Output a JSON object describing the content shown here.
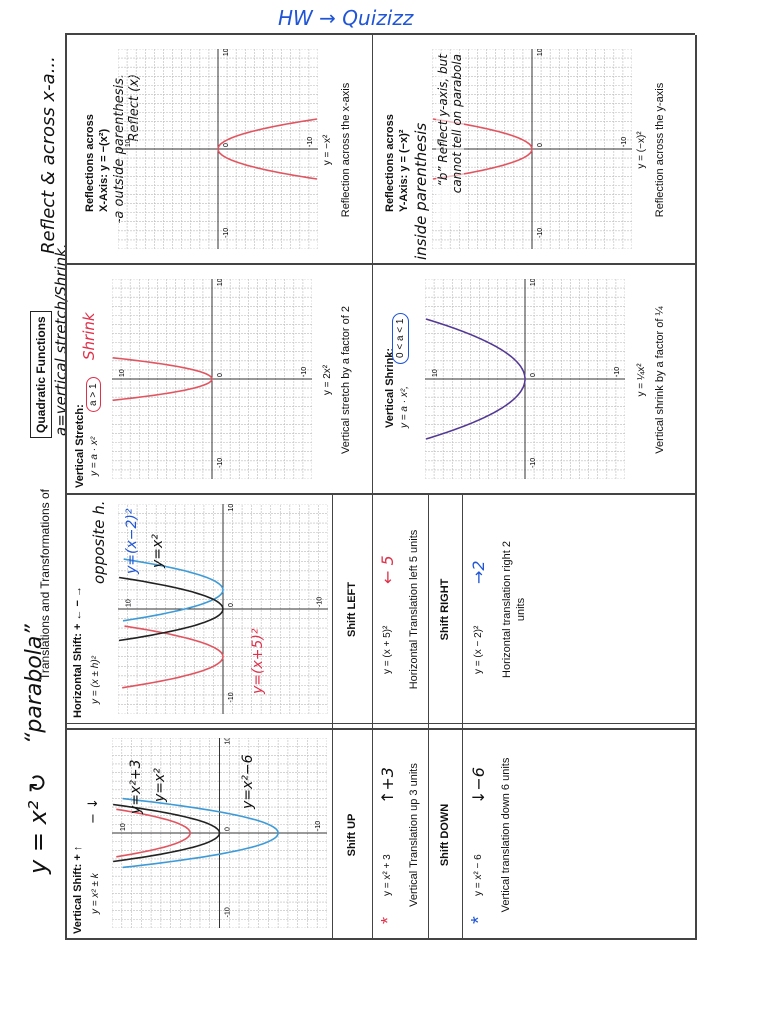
{
  "header": {
    "handwritten_equation": "y = x² ↻",
    "handwritten_label": "“parabola”",
    "title": "Translations and Transformations of",
    "title_boxed": "Quadratic Functions",
    "note_top": "HW → Quizizz",
    "note_stretch": "a=vertical stretch/Shrink.",
    "note_reflect": "Reflect & across x-a..."
  },
  "graph_ticks": [
    -10,
    0,
    10
  ],
  "vertical_shift": {
    "heading": "Vertical Shift: + ↑",
    "signs": "− ↓",
    "formula": "y = x² ± k",
    "graph_labels": [
      "y=x²+3",
      "y=x²",
      "y=x²−6"
    ],
    "up": {
      "header": "Shift UP",
      "equation": "y = x² + 3",
      "note": "↑+3",
      "description": "Vertical Translation up 3 units"
    },
    "down": {
      "header": "Shift DOWN",
      "equation": "y = x² − 6",
      "note": "↓−6",
      "description": "Vertical translation down 6 units"
    }
  },
  "horizontal_shift": {
    "heading": "Horizontal Shift: + ← − →",
    "formula": "y = (x ± h)²",
    "note": "opposite h.",
    "graph_labels": [
      "y=(x−2)²",
      "y=x²",
      "y=(x+5)²"
    ],
    "left": {
      "header": "Shift LEFT",
      "equation": "y = (x + 5)²",
      "note": "← 5",
      "description": "Horizontal Translation left 5 units"
    },
    "right": {
      "header": "Shift RIGHT",
      "equation": "y = (x − 2)²",
      "note": "→2",
      "description": "Horizontal translation right 2 units"
    }
  },
  "vertical_stretch": {
    "heading": "Vertical Stretch:",
    "formula": "y = a · x²",
    "condition": "a > 1",
    "note": "Shrink",
    "caption_equation": "y = 2x²",
    "caption": "Vertical stretch by a factor of 2"
  },
  "vertical_shrink": {
    "heading": "Vertical Shrink:",
    "formula": "y = a · x²,",
    "condition": "0 < a < 1",
    "caption_equation": "y = ¼x²",
    "caption": "Vertical shrink by a factor of ¼"
  },
  "reflect_x": {
    "heading": "Reflections across",
    "subheading": "X-Axis: y = −(x²)",
    "note": "-a outside parenthesis. Reflect (x)",
    "caption_equation": "y = −x²",
    "caption": "Reflection across the x-axis"
  },
  "reflect_y": {
    "heading": "Reflections across",
    "subheading": "Y-Axis: y = (−x)²",
    "note_inside": "inside parenthesis",
    "note": "“b” Reflect y-axis, but cannot tell on parabola",
    "caption_equation": "y = (−x)²",
    "caption": "Reflection across the y-axis"
  }
}
